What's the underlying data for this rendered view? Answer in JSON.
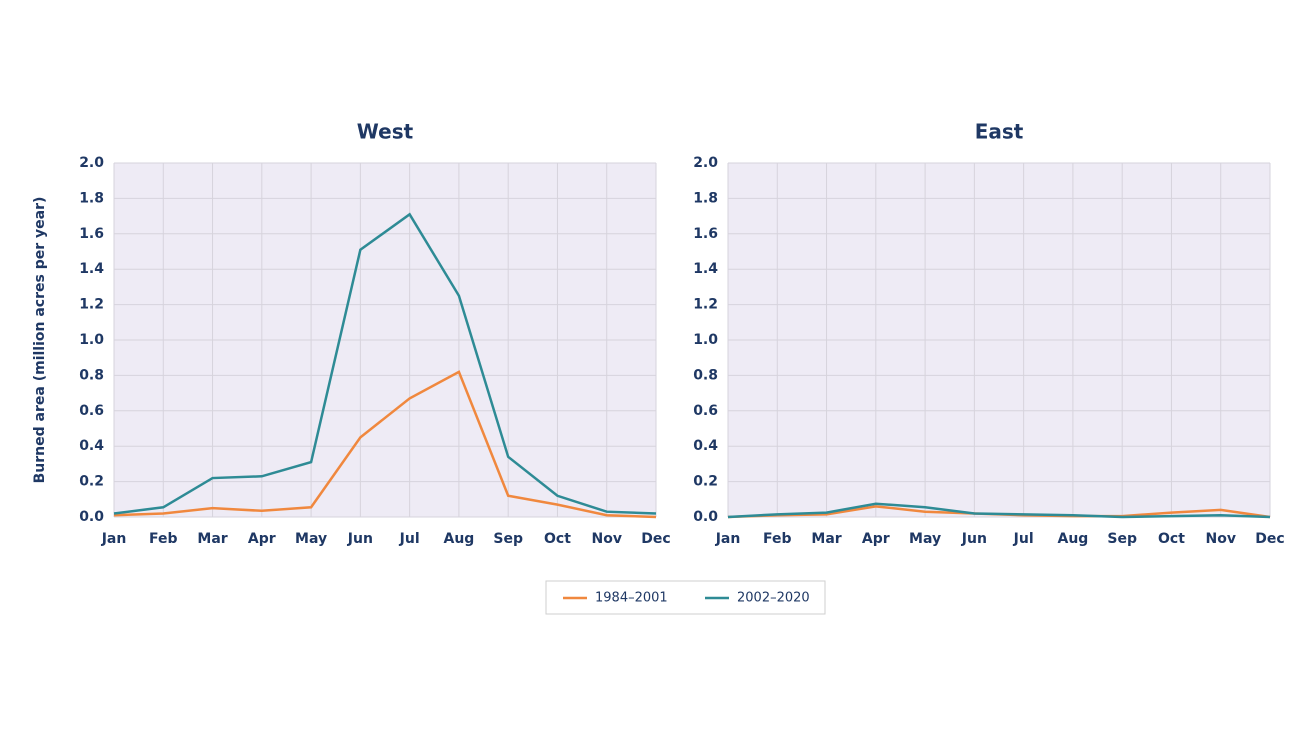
{
  "chart_data": [
    {
      "type": "line",
      "title": "West",
      "ylabel": "Burned area (million acres per year)",
      "categories": [
        "Jan",
        "Feb",
        "Mar",
        "Apr",
        "May",
        "Jun",
        "Jul",
        "Aug",
        "Sep",
        "Oct",
        "Nov",
        "Dec"
      ],
      "series": [
        {
          "name": "1984–2001",
          "color": "#f0883e",
          "values": [
            0.01,
            0.02,
            0.05,
            0.035,
            0.055,
            0.45,
            0.67,
            0.82,
            0.12,
            0.07,
            0.01,
            0.0
          ]
        },
        {
          "name": "2002–2020",
          "color": "#2e8b95",
          "values": [
            0.02,
            0.055,
            0.22,
            0.23,
            0.31,
            1.51,
            1.71,
            1.25,
            0.34,
            0.12,
            0.03,
            0.02
          ]
        }
      ],
      "ylim": [
        0,
        2
      ],
      "yticks": [
        {
          "value": 0,
          "label": "0.0"
        },
        0.2,
        0.4,
        0.6,
        0.8,
        {
          "value": 1,
          "label": "1.0"
        },
        1.2,
        1.4,
        1.6,
        1.8,
        {
          "value": 2,
          "label": "2.0"
        }
      ],
      "grid": true
    },
    {
      "type": "line",
      "title": "East",
      "categories": [
        "Jan",
        "Feb",
        "Mar",
        "Apr",
        "May",
        "Jun",
        "Jul",
        "Aug",
        "Sep",
        "Oct",
        "Nov",
        "Dec"
      ],
      "series": [
        {
          "name": "1984–2001",
          "color": "#f0883e",
          "values": [
            0.0,
            0.01,
            0.015,
            0.06,
            0.03,
            0.02,
            0.01,
            0.005,
            0.005,
            0.025,
            0.04,
            0.0
          ]
        },
        {
          "name": "2002–2020",
          "color": "#2e8b95",
          "values": [
            0.0,
            0.015,
            0.025,
            0.075,
            0.055,
            0.02,
            0.015,
            0.01,
            0.0,
            0.005,
            0.01,
            0.0
          ]
        }
      ],
      "ylim": [
        0,
        2
      ],
      "yticks": [
        {
          "value": 0,
          "label": "0.0"
        },
        0.2,
        0.4,
        0.6,
        0.8,
        {
          "value": 1,
          "label": "1.0"
        },
        1.2,
        1.4,
        1.6,
        1.8,
        {
          "value": 2,
          "label": "2.0"
        }
      ],
      "grid": true
    }
  ]
}
